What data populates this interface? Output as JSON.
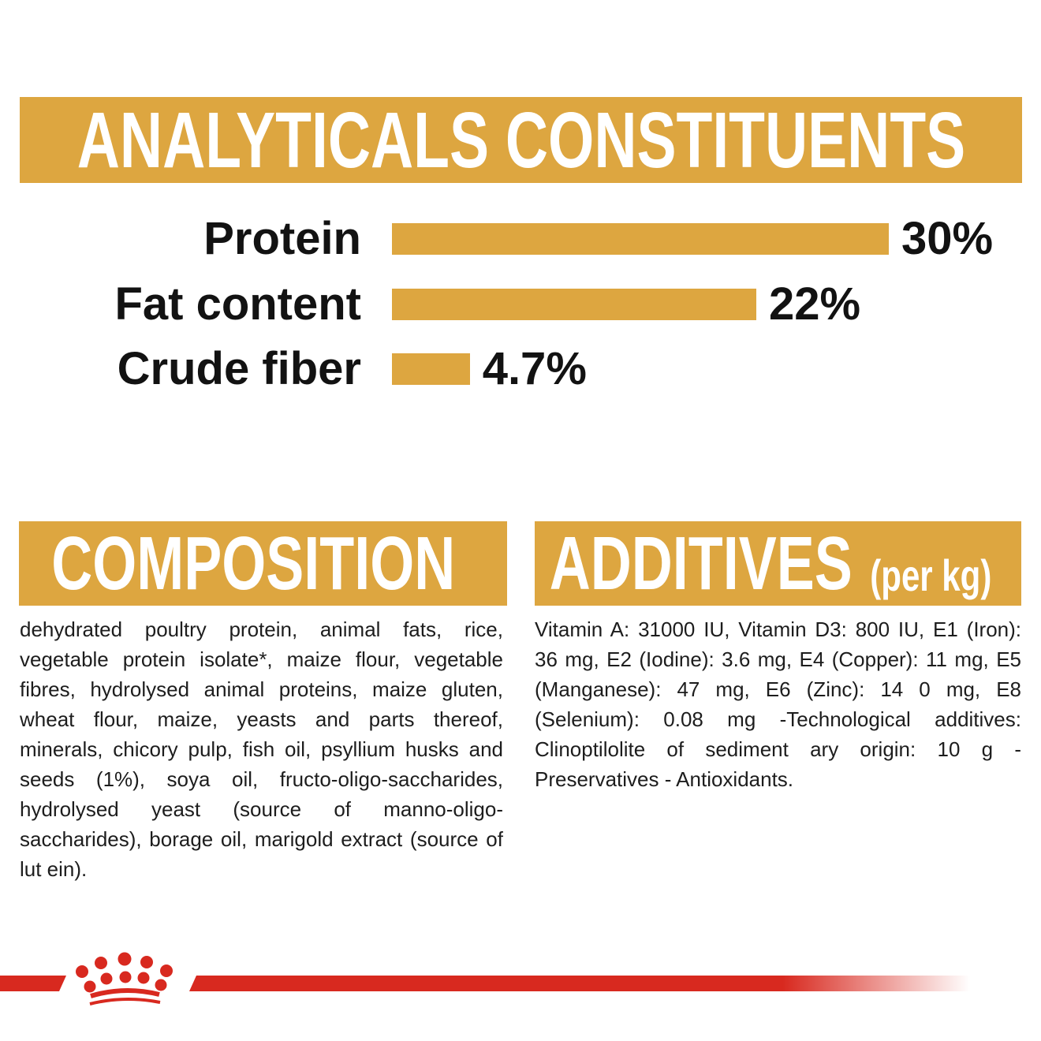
{
  "colors": {
    "gold": "#DDA640",
    "red": "#D8291F",
    "heading_text": "#FFFFFF",
    "body_text": "#1D1D1D"
  },
  "analyticals": {
    "title": "ANALYTICALS CONSTITUENTS",
    "chart_data": {
      "type": "bar",
      "orientation": "horizontal",
      "title": "ANALYTICALS CONSTITUENTS",
      "categories": [
        "Protein",
        "Fat content",
        "Crude fiber"
      ],
      "values": [
        30,
        22,
        4.7
      ],
      "value_labels": [
        "30%",
        "22%",
        "4.7%"
      ],
      "unit": "%",
      "xlim": [
        0,
        30
      ],
      "bar_color": "#DDA640",
      "grid": false,
      "legend": false
    }
  },
  "composition": {
    "title": "COMPOSITION",
    "body": "dehydrated poultry protein, animal fats, rice, vegetable protein isolate*, maize flour, vegetable fibres, hydrolysed animal proteins, maize gluten, wheat flour, maize, yeasts and parts thereof, minerals, chicory pulp, fish oil, psyllium husks and seeds (1%), soya oil, fructo-oligo-saccharides, hydrolysed yeast (source of manno-oligo-saccharides), borage oil, marigold extract (source of lut ein)."
  },
  "additives": {
    "title": "ADDITIVES",
    "unit_label": "(per kg)",
    "body": "Vitamin A: 31000 IU, Vitamin D3: 800 IU, E1 (Iron): 36 mg, E2 (Iodine): 3.6 mg, E4 (Copper): 11 mg, E5 (Manganese): 47 mg, E6 (Zinc): 14 0 mg, E8 (Selenium): 0.08 mg -Technological additives: Clinoptilolite of sediment ary origin: 10 g - Preservatives - Antioxidants."
  },
  "footer": {
    "logo": "royal-canin-crown-logo"
  }
}
